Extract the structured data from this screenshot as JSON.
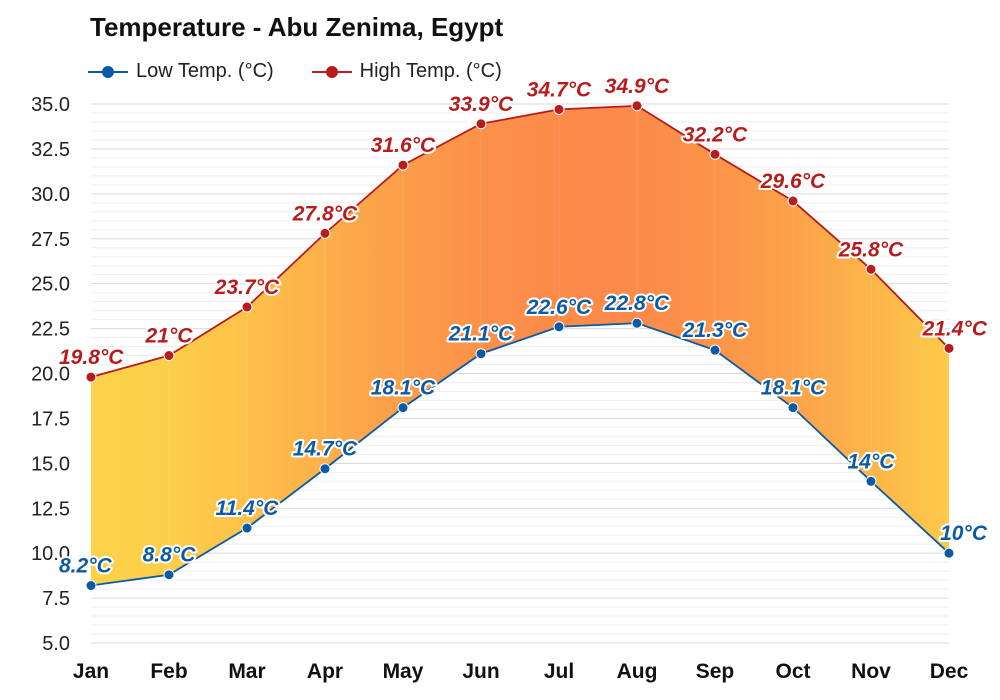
{
  "chart_data": {
    "type": "line",
    "title": "Temperature - Abu Zenima, Egypt",
    "categories": [
      "Jan",
      "Feb",
      "Mar",
      "Apr",
      "May",
      "Jun",
      "Jul",
      "Aug",
      "Sep",
      "Oct",
      "Nov",
      "Dec"
    ],
    "series": [
      {
        "name": "Low Temp. (°C)",
        "color": "#0a5aa5",
        "values": [
          8.2,
          8.8,
          11.4,
          14.7,
          18.1,
          21.1,
          22.6,
          22.8,
          21.3,
          18.1,
          14,
          10
        ],
        "labels": [
          "8.2°C",
          "8.8°C",
          "11.4°C",
          "14.7°C",
          "18.1°C",
          "21.1°C",
          "22.6°C",
          "22.8°C",
          "21.3°C",
          "18.1°C",
          "14°C",
          "10°C"
        ]
      },
      {
        "name": "High Temp. (°C)",
        "color": "#b81c1c",
        "values": [
          19.8,
          21,
          23.7,
          27.8,
          31.6,
          33.9,
          34.7,
          34.9,
          32.2,
          29.6,
          25.8,
          21.4
        ],
        "labels": [
          "19.8°C",
          "21°C",
          "23.7°C",
          "27.8°C",
          "31.6°C",
          "33.9°C",
          "34.7°C",
          "34.9°C",
          "32.2°C",
          "29.6°C",
          "25.8°C",
          "21.4°C"
        ]
      }
    ],
    "yticks": [
      "5.0",
      "7.5",
      "10.0",
      "12.5",
      "15.0",
      "17.5",
      "20.0",
      "22.5",
      "25.0",
      "27.5",
      "30.0",
      "32.5",
      "35.0"
    ],
    "ylim": [
      5,
      35
    ],
    "grid": true,
    "legend_position": "top-left",
    "fill_between": true,
    "fill_colors": {
      "cool": "#fdd24a",
      "hot": "#fc8a4a"
    }
  }
}
